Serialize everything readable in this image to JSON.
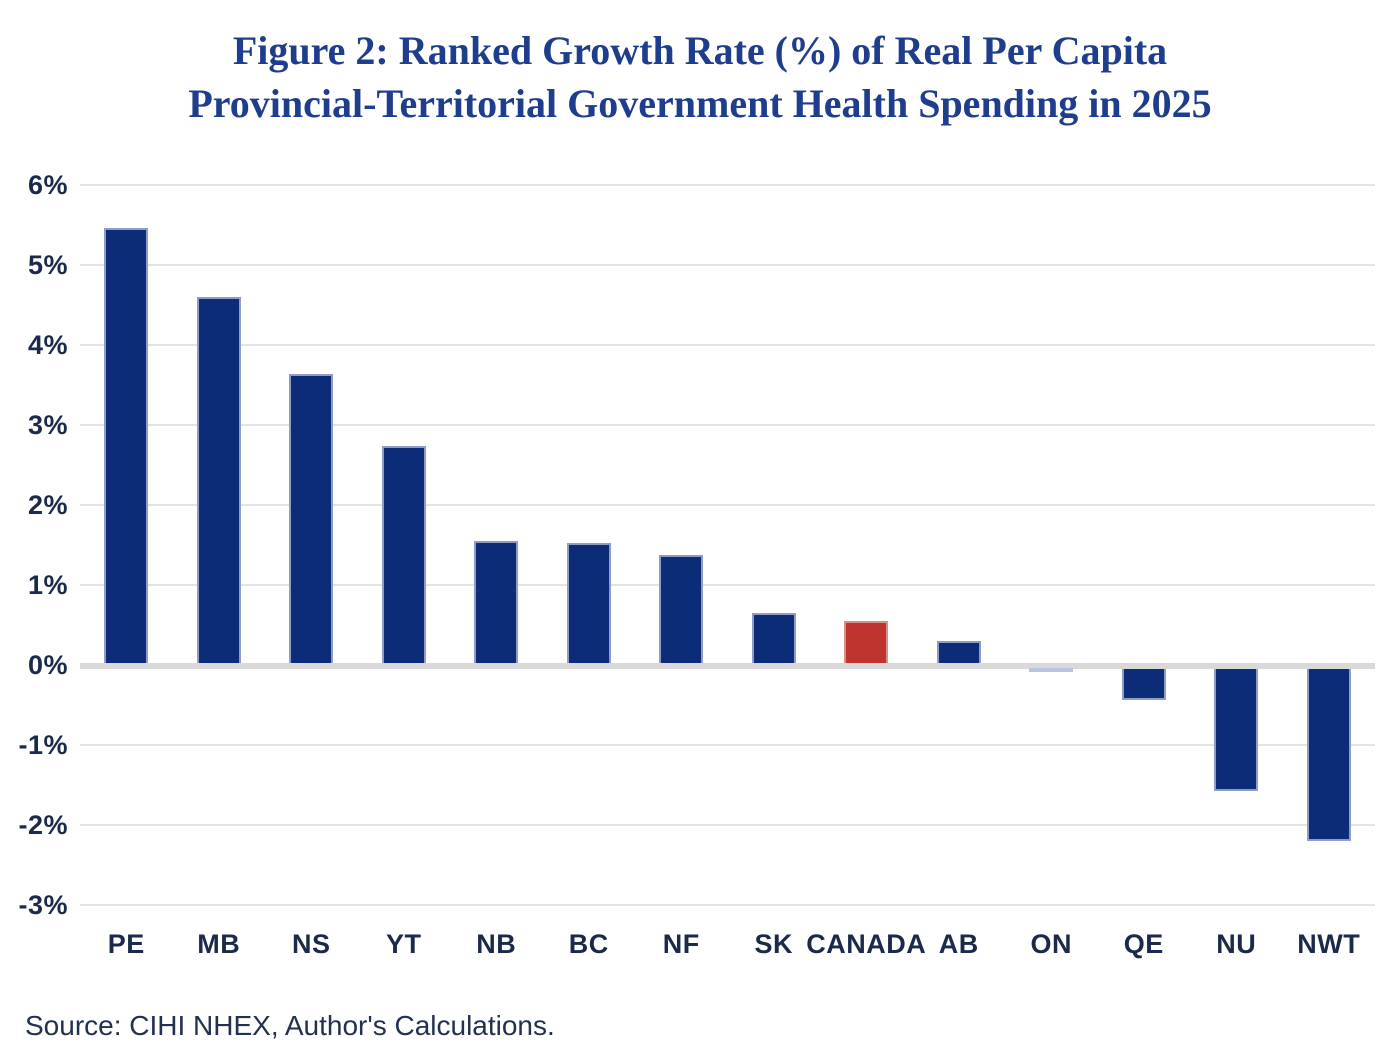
{
  "title": {
    "line1": "Figure 2: Ranked Growth Rate (%) of Real Per Capita",
    "line2": "Provincial-Territorial Government Health Spending in 2025"
  },
  "source": "Source: CIHI NHEX, Author's Calculations.",
  "colors": {
    "title": "#1e3d8c",
    "axis_label": "#1b2a4a",
    "source_text": "#233150",
    "gridline": "#e3e3e3",
    "zero_line": "#d9d9d9",
    "bar_default": "#0d2c78",
    "bar_default_border": "#8f9cc5",
    "bar_highlight": "#c0342f",
    "bar_highlight_border": "#d98f88",
    "bar_near_zero": "#b9c5de"
  },
  "chart_data": {
    "type": "bar",
    "title": "Figure 2: Ranked Growth Rate (%) of Real Per Capita Provincial-Territorial Government Health Spending in 2025",
    "categories": [
      "PE",
      "MB",
      "NS",
      "YT",
      "NB",
      "BC",
      "NF",
      "SK",
      "CANADA",
      "AB",
      "ON",
      "QE",
      "NU",
      "NWT"
    ],
    "values": [
      5.46,
      4.6,
      3.64,
      2.74,
      1.55,
      1.52,
      1.37,
      0.65,
      0.55,
      0.3,
      -0.05,
      -0.41,
      -1.55,
      -2.17
    ],
    "highlight_category": "CANADA",
    "near_zero_threshold": 0.1,
    "xlabel": "",
    "ylabel": "",
    "ylim": [
      -3,
      6
    ],
    "ytick_step": 1,
    "yticks": [
      "6%",
      "5%",
      "4%",
      "3%",
      "2%",
      "1%",
      "0%",
      "-1%",
      "-2%",
      "-3%"
    ],
    "grid": true,
    "legend": false
  }
}
